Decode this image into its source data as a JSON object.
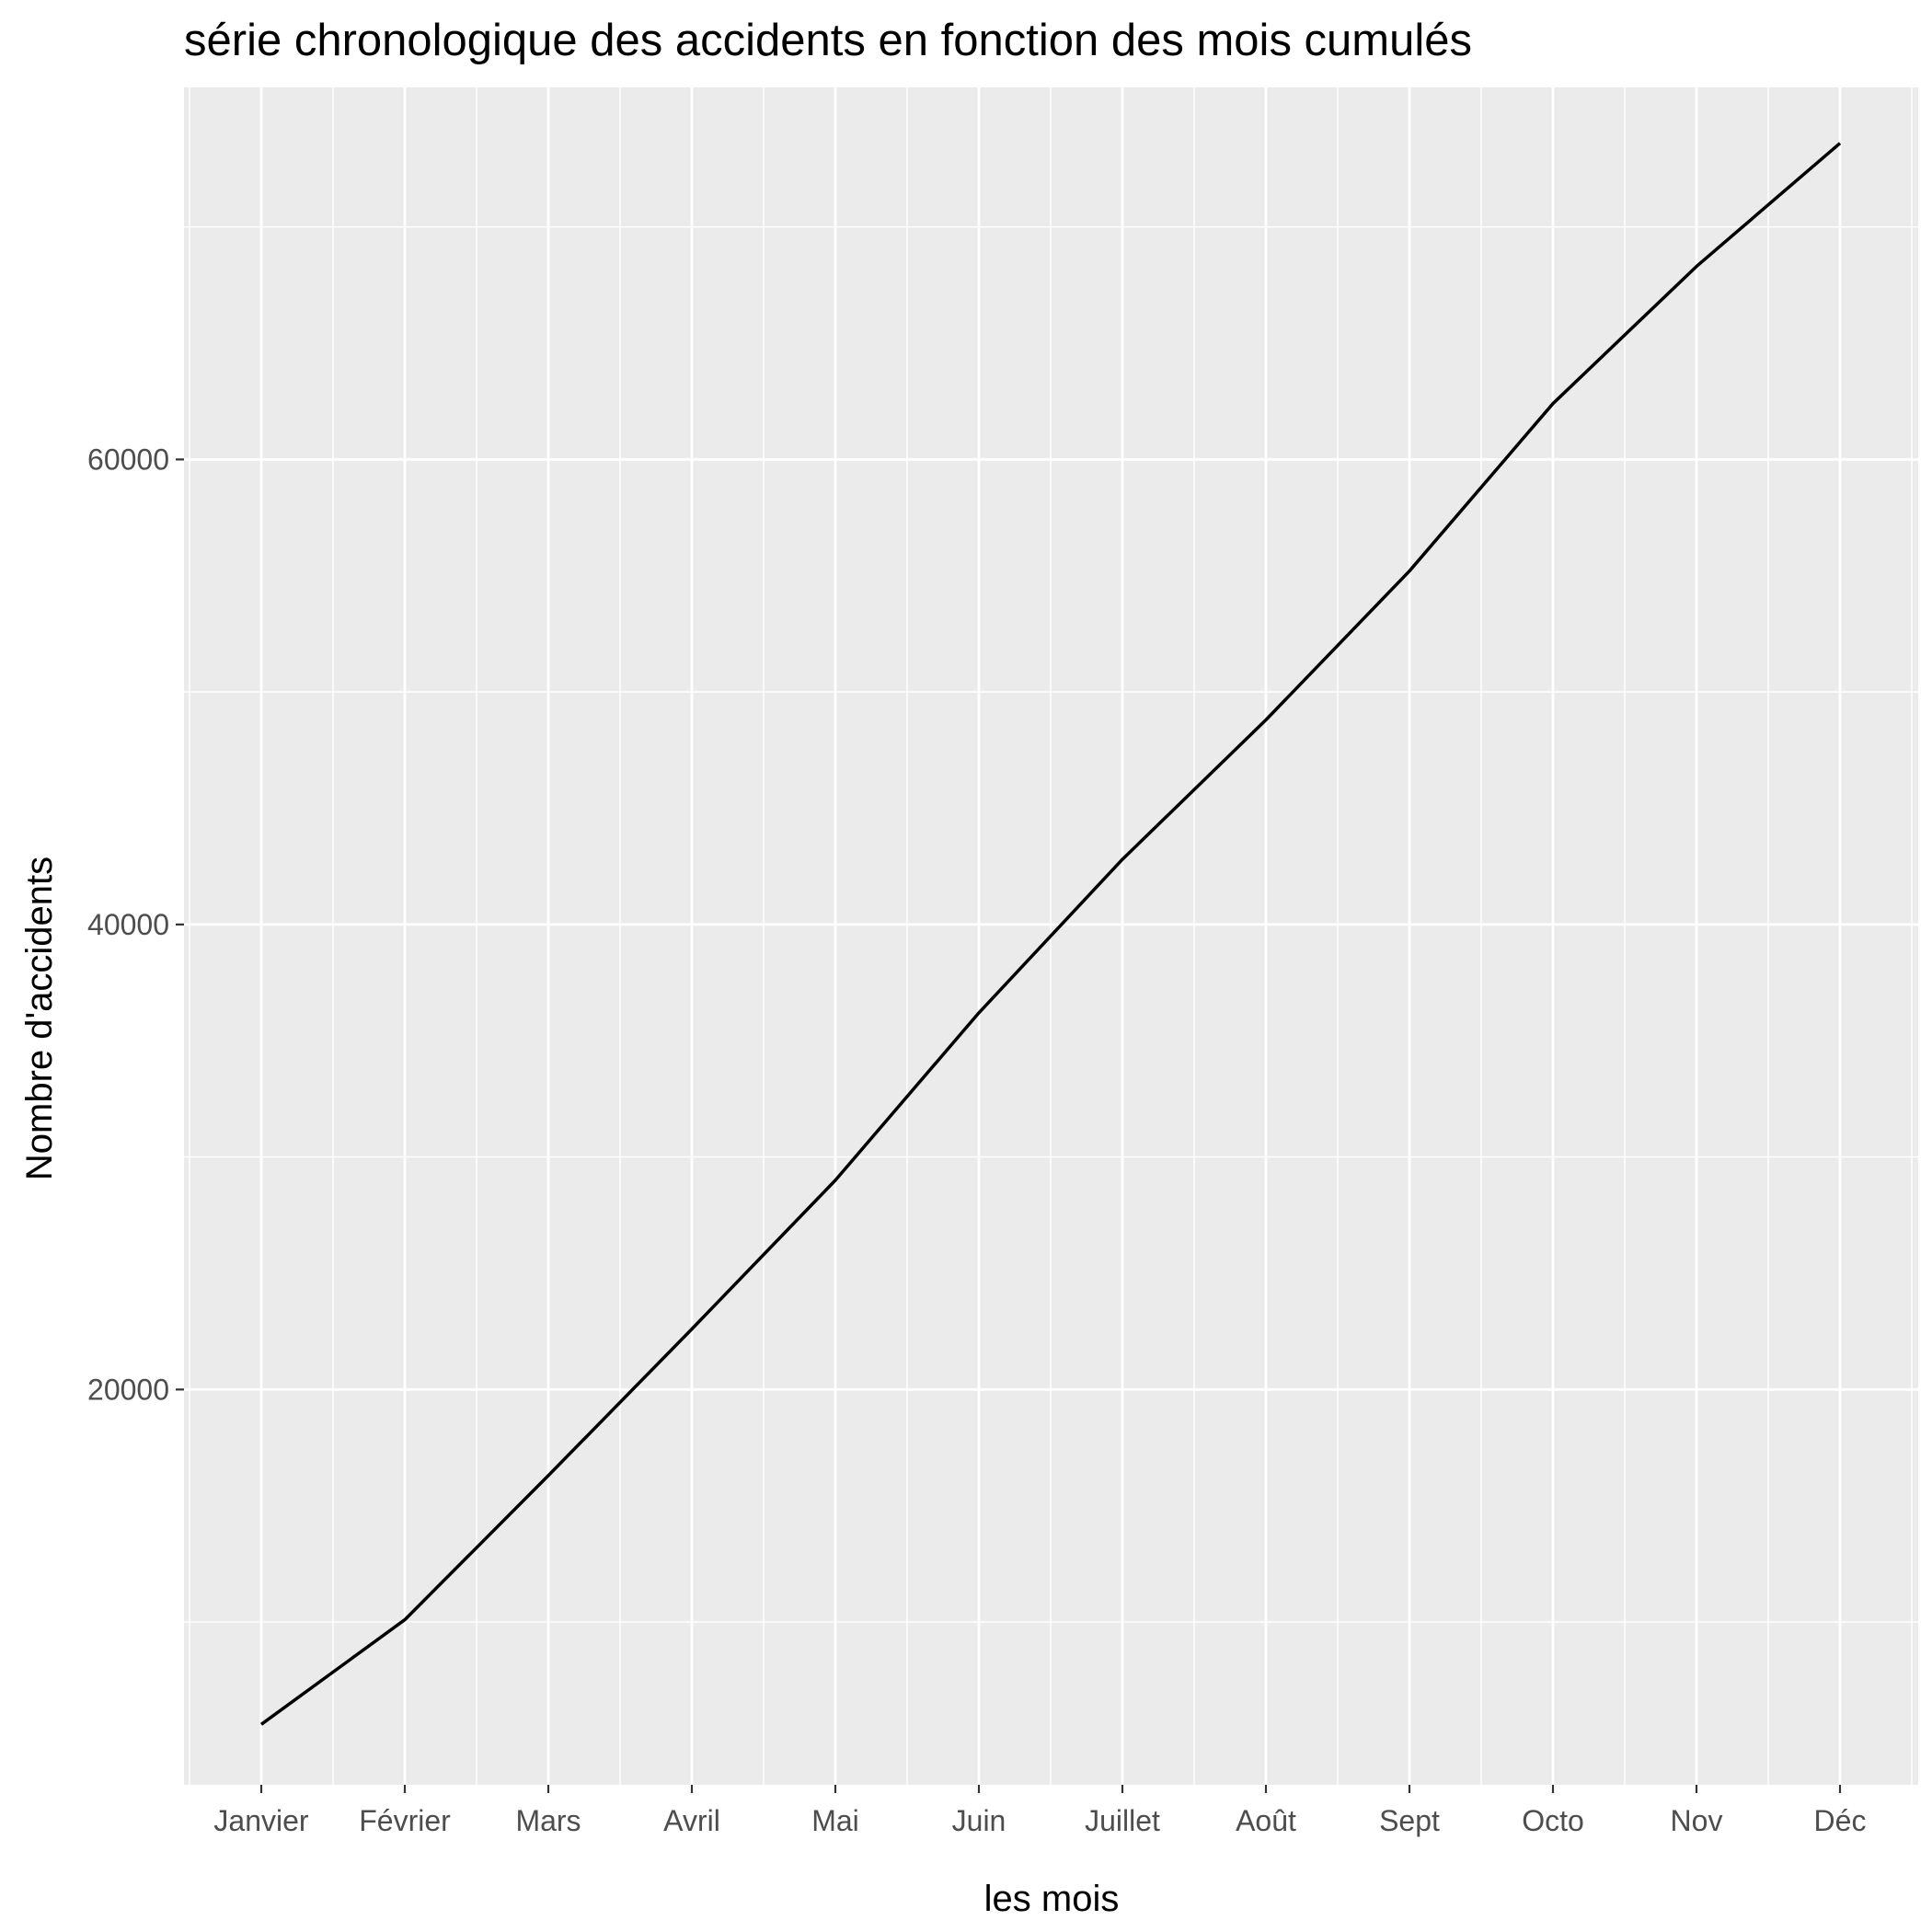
{
  "chart_data": {
    "type": "line",
    "title": "série chronologique des accidents en fonction des mois cumulés",
    "xlabel": "les mois",
    "ylabel": "Nombre d'accidents",
    "categories": [
      "Janvier",
      "Février",
      "Mars",
      "Avril",
      "Mai",
      "Juin",
      "Juillet",
      "Août",
      "Sept",
      "Octo",
      "Nov",
      "Déc"
    ],
    "series": [
      {
        "values": [
          5600,
          10100,
          16300,
          22600,
          29000,
          36200,
          42800,
          48800,
          55200,
          62400,
          68300,
          73600
        ]
      }
    ],
    "y_ticks": [
      20000,
      40000,
      60000
    ],
    "ylim": [
      3000,
      76000
    ],
    "grid": true,
    "background": "#ebebeb",
    "line_color": "#000000"
  }
}
